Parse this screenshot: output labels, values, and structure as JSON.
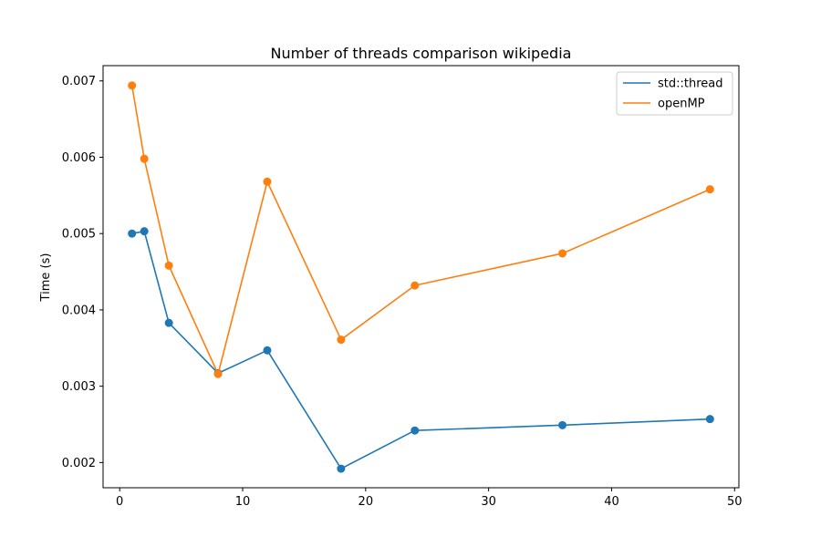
{
  "chart_data": {
    "type": "line",
    "title": "Number of threads comparison wikipedia",
    "xlabel": "",
    "ylabel": "Time (s)",
    "xlim": [
      -1.35,
      50.35
    ],
    "ylim": [
      0.00167,
      0.0072
    ],
    "xticks": [
      0,
      10,
      20,
      30,
      40,
      50
    ],
    "xtick_labels": [
      "0",
      "10",
      "20",
      "30",
      "40",
      "50"
    ],
    "yticks": [
      0.002,
      0.003,
      0.004,
      0.005,
      0.006,
      0.007
    ],
    "ytick_labels": [
      "0.002",
      "0.003",
      "0.004",
      "0.005",
      "0.006",
      "0.007"
    ],
    "grid": false,
    "legend_position": "top-right",
    "x": [
      1,
      2,
      4,
      8,
      12,
      18,
      24,
      36,
      48
    ],
    "series": [
      {
        "name": "std::thread",
        "color": "#1f77b4",
        "values": [
          0.005,
          0.00503,
          0.00383,
          0.00317,
          0.00347,
          0.00192,
          0.00242,
          0.00249,
          0.00257
        ]
      },
      {
        "name": "openMP",
        "color": "#ff7f0e",
        "values": [
          0.00694,
          0.00598,
          0.00458,
          0.00316,
          0.00568,
          0.00361,
          0.00432,
          0.00474,
          0.00558
        ]
      }
    ]
  }
}
